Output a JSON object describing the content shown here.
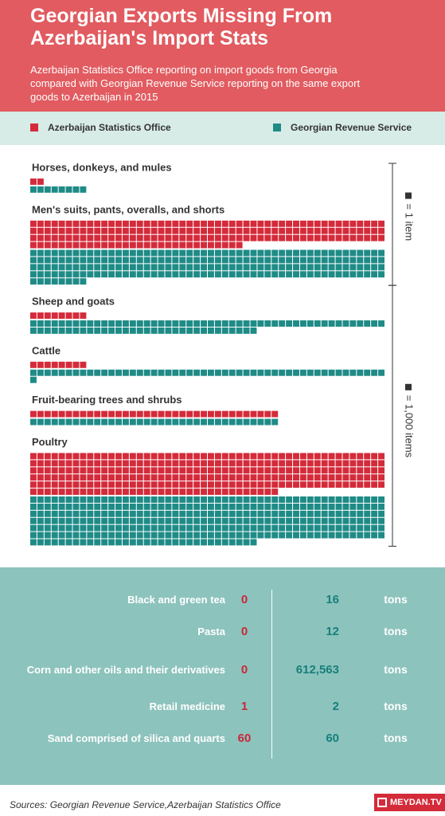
{
  "header": {
    "title": "Georgian Exports Missing From Azerbaijan's Import Stats",
    "subtitle": "Azerbaijan Statistics Office reporting on import goods from Georgia compared with Georgian Revenue Service reporting on the same export goods to Azerbaijan in 2015"
  },
  "chart_data": {
    "type": "waffle",
    "series": [
      {
        "name": "Azerbaijan Statistics Office",
        "color": "#d42b3a"
      },
      {
        "name": "Georgian Revenue Service",
        "color": "#1f8b87"
      }
    ],
    "groups": [
      {
        "scale": {
          "value": 1,
          "label": "= 1 item"
        },
        "categories": [
          "Horses, donkeys, and mules",
          "Men's suits, pants, overalls, and shorts"
        ],
        "values": [
          [
            2,
            8
          ],
          [
            180,
            208
          ]
        ]
      },
      {
        "scale": {
          "value": 1000,
          "label": "= 1,000 items"
        },
        "categories": [
          "Sheep and goats",
          "Cattle",
          "Fruit-bearing trees and shrubs",
          "Poultry"
        ],
        "values": [
          [
            8000,
            82000
          ],
          [
            8000,
            51000
          ],
          [
            35000,
            35000
          ],
          [
            285000,
            332000
          ]
        ]
      }
    ]
  },
  "table": {
    "rows": [
      [
        "Black and green tea",
        "0",
        "16",
        "tons"
      ],
      [
        "Pasta",
        "0",
        "12",
        "tons"
      ],
      [
        "Corn and other oils and their derivatives",
        "0",
        "612,563",
        "tons"
      ],
      [
        "Retail medicine",
        "1",
        "2",
        "tons"
      ],
      [
        "Sand comprised of silica and quarts",
        "60",
        "60",
        "tons"
      ]
    ]
  },
  "footer": {
    "source": "Sources: Georgian Revenue Service,Azerbaijan Statistics Office",
    "logo": "MEYDAN.TV"
  }
}
